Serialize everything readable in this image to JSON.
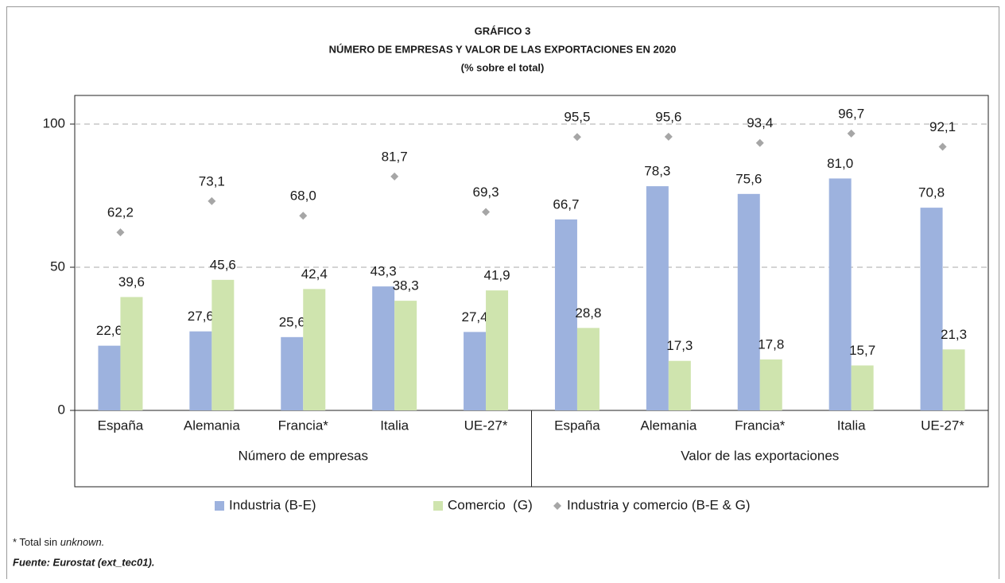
{
  "chart_data": {
    "type": "bar",
    "title": "GRÁFICO 3",
    "subtitle": "NÚMERO DE EMPRESAS Y VALOR DE LAS EXPORTACIONES EN 2020",
    "unit_note": "(% sobre el total)",
    "groups": [
      {
        "label": "Número de empresas",
        "categories": [
          "España",
          "Alemania",
          "Francia*",
          "Italia",
          "UE-27*"
        ]
      },
      {
        "label": "Valor de las exportaciones",
        "categories": [
          "España",
          "Alemania",
          "Francia*",
          "Italia",
          "UE-27*"
        ]
      }
    ],
    "series": [
      {
        "name": "Industria (B-E)",
        "type": "bar",
        "color": "#9db2de",
        "values": [
          22.6,
          27.6,
          25.6,
          43.3,
          27.4,
          66.7,
          78.3,
          75.6,
          81.0,
          70.8
        ],
        "value_labels": [
          "22,6",
          "27,6",
          "25,6",
          "43,3",
          "27,4",
          "66,7",
          "78,3",
          "75,6",
          "81,0",
          "70,8"
        ]
      },
      {
        "name": "Comercio  (G)",
        "type": "bar",
        "color": "#cfe4ae",
        "values": [
          39.6,
          45.6,
          42.4,
          38.3,
          41.9,
          28.8,
          17.3,
          17.8,
          15.7,
          21.3
        ],
        "value_labels": [
          "39,6",
          "45,6",
          "42,4",
          "38,3",
          "41,9",
          "28,8",
          "17,3",
          "17,8",
          "15,7",
          "21,3"
        ]
      },
      {
        "name": "Industria y comercio (B-E & G)",
        "type": "scatter",
        "color": "#a6a6a6",
        "values": [
          62.2,
          73.1,
          68.0,
          81.7,
          69.3,
          95.5,
          95.6,
          93.4,
          96.7,
          92.1
        ],
        "value_labels": [
          "62,2",
          "73,1",
          "68,0",
          "81,7",
          "69,3",
          "95,5",
          "95,6",
          "93,4",
          "96,7",
          "92,1"
        ]
      }
    ],
    "ylim": [
      0,
      110
    ],
    "yticks": [
      0,
      50,
      100
    ],
    "grid": true,
    "legend": "bottom",
    "footnote": [
      "* Total sin ",
      "unknown."
    ],
    "source": "Fuente: Eurostat (ext_tec01)."
  }
}
